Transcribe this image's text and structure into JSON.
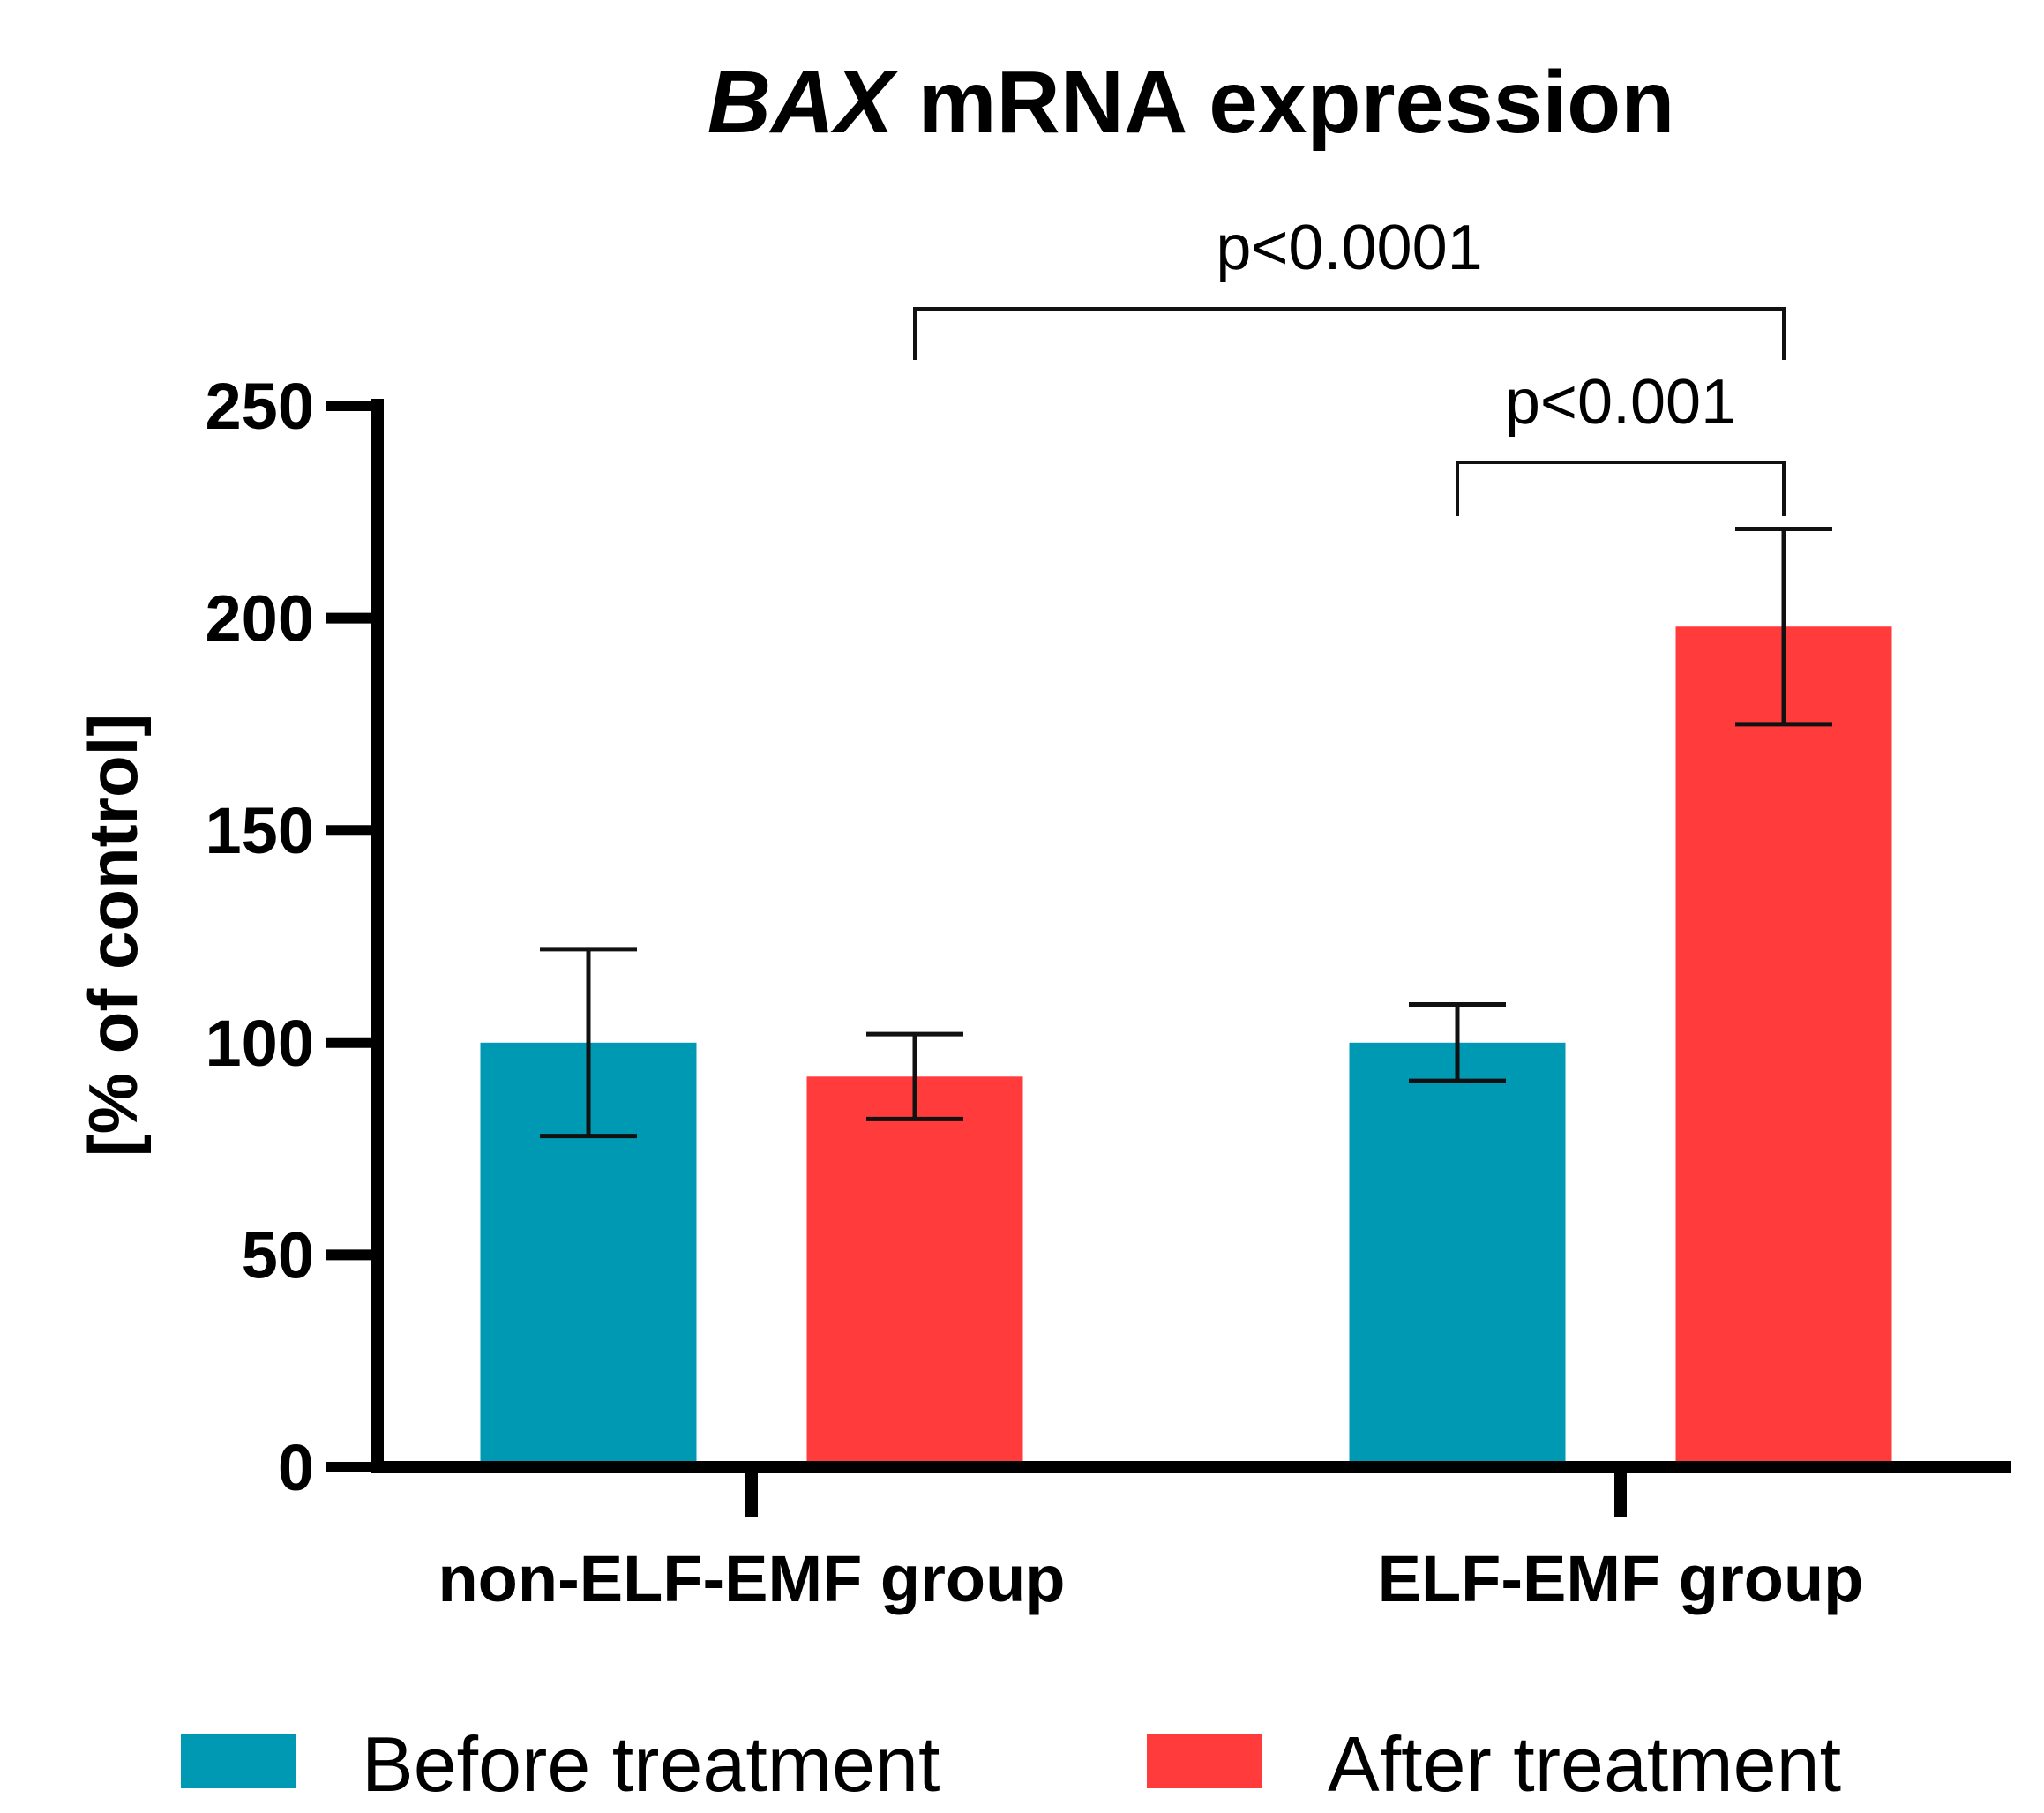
{
  "chart_data": {
    "type": "bar",
    "title": "BAX mRNA expression",
    "title_italic_part": "BAX",
    "title_rest": " mRNA expression",
    "ylabel": "[% of control]",
    "xlabel": "",
    "ylim": [
      0,
      250
    ],
    "yticks": [
      0,
      50,
      100,
      150,
      200,
      250
    ],
    "grid": false,
    "legend_position": "bottom",
    "categories": [
      "non-ELF-EMF group",
      "ELF-EMF group"
    ],
    "series": [
      {
        "name": "Before treatment",
        "color": "#0099B4",
        "values": [
          100,
          100
        ],
        "error_low": [
          78,
          91
        ],
        "error_high": [
          122,
          109
        ]
      },
      {
        "name": "After treatment",
        "color": "#FF3B3B",
        "values": [
          92,
          198
        ],
        "error_low": [
          82,
          175
        ],
        "error_high": [
          102,
          221
        ]
      }
    ],
    "annotations": [
      {
        "text": "p<0.0001",
        "from": {
          "category": 0,
          "series": 1
        },
        "to": {
          "category": 1,
          "series": 1
        },
        "level": 2
      },
      {
        "text": "p<0.001",
        "from": {
          "category": 1,
          "series": 0
        },
        "to": {
          "category": 1,
          "series": 1
        },
        "level": 1
      }
    ]
  }
}
